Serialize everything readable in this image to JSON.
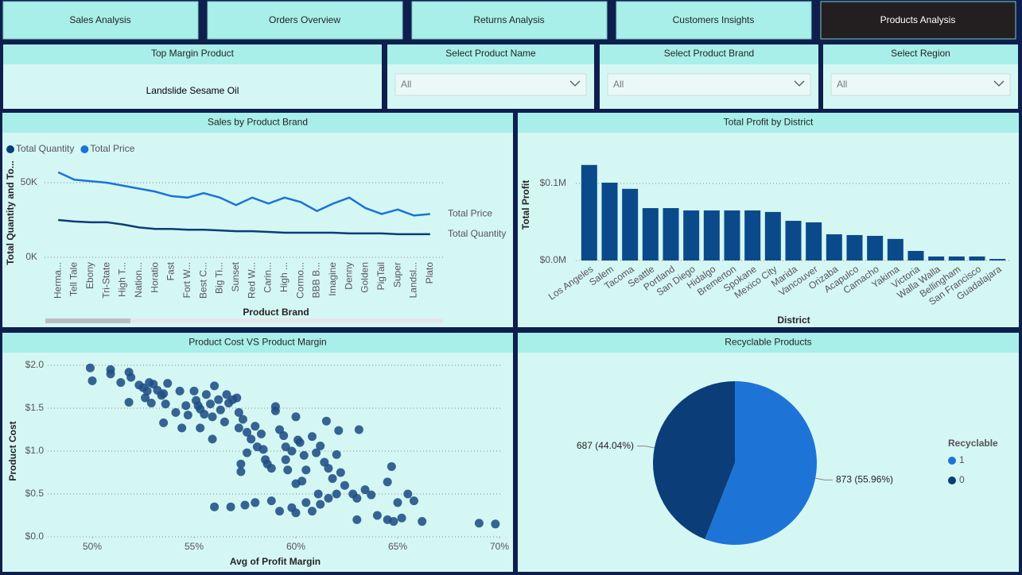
{
  "tabs": {
    "items": [
      "Sales Analysis",
      "Orders Overview",
      "Returns Analysis",
      "Customers Insights",
      "Products Analysis"
    ],
    "active": 4
  },
  "card": {
    "title": "Top Margin Product",
    "value": "Landslide Sesame Oil"
  },
  "slicers": [
    {
      "title": "Select Product Name",
      "value": "All"
    },
    {
      "title": "Select Product Brand",
      "value": "All"
    },
    {
      "title": "Select Region",
      "value": "All"
    }
  ],
  "chart_data": [
    {
      "type": "line",
      "title": "Sales by Product Brand",
      "x_label": "Product Brand",
      "y_label": "Total Quantity and To...",
      "categories": [
        "Herma...",
        "Tell Tale",
        "Ebony",
        "Tri-State",
        "High T...",
        "Nation...",
        "Horatio",
        "Fast",
        "Fort W...",
        "Best C...",
        "Big Ti...",
        "Sunset",
        "Red W...",
        "Carin...",
        "High ...",
        "Cormo...",
        "BBB B...",
        "Imagine",
        "Denny",
        "Golden",
        "PigTail",
        "Super",
        "Landsl...",
        "Plato"
      ],
      "series": [
        {
          "name": "Total Quantity",
          "color": "#0b3d7a",
          "values": [
            25000,
            24000,
            23500,
            23500,
            22000,
            20000,
            19000,
            19000,
            18500,
            18500,
            18000,
            17500,
            17500,
            17000,
            16500,
            16500,
            16500,
            16500,
            16000,
            16000,
            16000,
            15500,
            15500,
            15500
          ]
        },
        {
          "name": "Total Price",
          "color": "#1a73d9",
          "values": [
            57000,
            52000,
            51000,
            50000,
            48000,
            46000,
            44000,
            41000,
            40000,
            43000,
            40000,
            35000,
            40000,
            36000,
            40000,
            37000,
            31000,
            36000,
            40000,
            33000,
            29000,
            32000,
            28000,
            29000
          ]
        }
      ],
      "ylim": [
        0,
        65000
      ],
      "yticks": [
        {
          "value": 0,
          "label": "0K"
        },
        {
          "value": 50000,
          "label": "50K"
        }
      ],
      "grid": true,
      "legend": "top-left"
    },
    {
      "type": "bar",
      "title": "Total Profit by District",
      "x_label": "District",
      "y_label": "Total Profit",
      "categories": [
        "Los Angeles",
        "Salem",
        "Tacoma",
        "Seattle",
        "Portland",
        "San Diego",
        "Hidalgo",
        "Bremerton",
        "Spokane",
        "Mexico City",
        "Marida",
        "Vancouver",
        "Orizaba",
        "Acapulco",
        "Camacho",
        "Yakima",
        "Victoria",
        "Walla Walla",
        "Bellingham",
        "San Francisco",
        "Guadalajara"
      ],
      "values": [
        124000,
        101000,
        93000,
        68000,
        68000,
        65000,
        65000,
        65000,
        65000,
        63000,
        51500,
        49500,
        34000,
        33000,
        32000,
        28000,
        12400,
        5200,
        5200,
        5200,
        2000
      ],
      "color": "#0b4a8a",
      "ylim": [
        0,
        140000
      ],
      "yticks": [
        {
          "value": 0,
          "label": "$0.0M"
        },
        {
          "value": 100000,
          "label": "$0.1M"
        }
      ],
      "grid": true
    },
    {
      "type": "scatter",
      "title": "Product Cost VS Product Margin",
      "x_label": "Avg of Profit Margin",
      "y_label": "Product Cost",
      "color": "#1f4e85",
      "x": [
        49.9,
        50.0,
        50.9,
        50.9,
        51.4,
        51.8,
        51.9,
        51.8,
        52.3,
        52.5,
        52.7,
        52.8,
        52.6,
        53.0,
        53.2,
        53.4,
        53.5,
        53.6,
        53.5,
        54.1,
        54.3,
        54.4,
        54.7,
        55.0,
        55.1,
        55.3,
        55.5,
        55.2,
        55.6,
        55.8,
        55.9,
        56.0,
        56.2,
        56.3,
        56.5,
        56.6,
        56.7,
        56.9,
        57.1,
        57.2,
        57.4,
        57.2,
        57.6,
        57.8,
        57.6,
        57.3,
        57.3,
        58.0,
        58.1,
        58.3,
        58.5,
        58.6,
        58.8,
        59.0,
        59.0,
        59.2,
        59.4,
        59.5,
        59.5,
        59.8,
        60.0,
        60.2,
        60.4,
        60.5,
        60.3,
        60.8,
        61.0,
        61.2,
        61.4,
        61.6,
        61.8,
        62.0,
        62.2,
        62.4,
        62.8,
        63.0,
        63.1,
        63.4,
        63.7,
        64.5,
        65.0,
        65.5,
        65.8,
        56.0,
        56.8,
        57.5,
        58.0,
        58.8,
        59.2,
        59.8,
        60.0,
        60.5,
        60.8,
        61.2,
        61.6,
        62.0,
        63.0,
        64.0,
        64.5,
        64.8,
        65.2,
        66.2,
        64.7,
        69.0,
        69.8,
        61.5,
        62.1,
        60.0,
        61.1,
        55.9,
        55.3,
        53.7,
        52.9,
        54.6,
        58.4,
        59.6,
        60.1
      ],
      "values": [
        1.97,
        1.82,
        1.95,
        1.9,
        1.8,
        1.92,
        1.86,
        1.57,
        1.77,
        1.74,
        1.7,
        1.8,
        1.62,
        1.78,
        1.71,
        1.65,
        1.67,
        1.55,
        1.33,
        1.45,
        1.7,
        1.27,
        1.42,
        1.7,
        1.59,
        1.49,
        1.43,
        1.53,
        1.66,
        1.55,
        1.4,
        1.76,
        1.6,
        1.48,
        1.34,
        1.66,
        1.56,
        1.6,
        1.62,
        1.45,
        1.37,
        1.27,
        1.22,
        1.14,
        0.98,
        0.85,
        0.76,
        1.29,
        1.05,
        1.2,
        0.9,
        0.85,
        0.8,
        1.52,
        1.47,
        1.25,
        1.18,
        1.05,
        0.9,
        1.0,
        1.4,
        1.1,
        0.95,
        0.78,
        0.65,
        1.17,
        0.98,
        1.06,
        0.87,
        0.8,
        0.68,
        0.96,
        0.75,
        0.6,
        0.5,
        0.45,
        1.25,
        0.55,
        0.49,
        0.64,
        0.4,
        0.5,
        0.42,
        0.35,
        0.35,
        0.37,
        0.4,
        0.42,
        0.3,
        0.34,
        0.28,
        0.4,
        0.3,
        0.38,
        0.45,
        0.5,
        0.2,
        0.25,
        0.2,
        0.18,
        0.22,
        0.18,
        0.82,
        0.16,
        0.15,
        1.35,
        1.24,
        0.62,
        0.5,
        1.14,
        1.27,
        1.79,
        1.56,
        1.53,
        1.02,
        0.78,
        1.13
      ],
      "xlim": [
        47.8,
        70.5
      ],
      "xticks": [
        {
          "value": 50,
          "label": "50%"
        },
        {
          "value": 55,
          "label": "55%"
        },
        {
          "value": 60,
          "label": "60%"
        },
        {
          "value": 65,
          "label": "65%"
        },
        {
          "value": 70,
          "label": "70%"
        }
      ],
      "ylim": [
        0,
        2.1
      ],
      "yticks": [
        {
          "value": 0,
          "label": "$0.0"
        },
        {
          "value": 0.5,
          "label": "$0.5"
        },
        {
          "value": 1,
          "label": "$1.0"
        },
        {
          "value": 1.5,
          "label": "$1.5"
        },
        {
          "value": 2,
          "label": "$2.0"
        }
      ],
      "grid": true
    },
    {
      "type": "pie",
      "title": "Recyclable Products",
      "legend_title": "Recyclable",
      "legend": "right",
      "categories": [
        "1",
        "0"
      ],
      "values": [
        873,
        687
      ],
      "value_labels": [
        "873 (55.96%)",
        "687 (44.04%)"
      ],
      "colors": [
        "#1e74d6",
        "#0b3d78"
      ]
    }
  ]
}
